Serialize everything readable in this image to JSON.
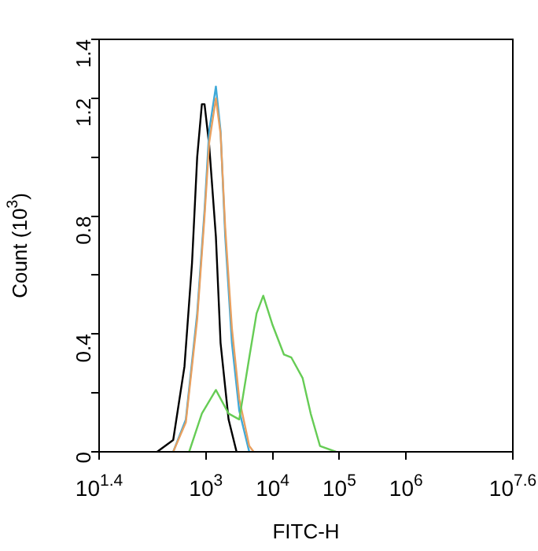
{
  "chart_data": {
    "type": "line",
    "xlabel": "FITC-H",
    "ylabel": "Count (10$^{3}$)",
    "log": "x",
    "grid": false,
    "legend": false,
    "marker": "none",
    "line_style": "solid",
    "xlim": [
      25.12,
      39810717
    ],
    "xticks": [
      {
        "value": 25.12,
        "label": "10$^{1.4}$"
      },
      {
        "value": 1000,
        "label": "10$^{3}$"
      },
      {
        "value": 10000,
        "label": "10$^{4}$"
      },
      {
        "value": 100000,
        "label": "10$^{5}$"
      },
      {
        "value": 1000000,
        "label": "10$^{6}$"
      },
      {
        "value": 39810717,
        "label": "10$^{7.6}$"
      }
    ],
    "ylim": [
      0,
      1.4
    ],
    "yticks": [
      0,
      {
        "value": 0.2,
        "label": null
      },
      0.4,
      {
        "value": 0.6,
        "label": null
      },
      0.8,
      {
        "value": 1.0,
        "label": null
      },
      1.2,
      1.4
    ],
    "series": [
      {
        "color": "#66cc55",
        "x": [
          562,
          871,
          1413,
          2188,
          3162,
          4467,
          5754,
          7244,
          10000,
          14800,
          19100,
          28200,
          37200,
          51300,
          89100
        ],
        "values": [
          0,
          0.13,
          0.21,
          0.13,
          0.11,
          0.32,
          0.47,
          0.53,
          0.43,
          0.33,
          0.32,
          0.25,
          0.13,
          0.02,
          0
        ]
      },
      {
        "color": "#e8a060",
        "x": [
          324,
          501,
          741,
          955,
          1122,
          1413,
          1660,
          1950,
          2455,
          3162,
          4467,
          5200
        ],
        "values": [
          0,
          0.1,
          0.45,
          0.8,
          1.05,
          1.2,
          1.08,
          0.76,
          0.42,
          0.18,
          0.02,
          0
        ]
      },
      {
        "color": "#3fa9d8",
        "x": [
          324,
          501,
          741,
          955,
          1122,
          1413,
          1660,
          1950,
          2455,
          3162,
          4467
        ],
        "values": [
          0,
          0.11,
          0.47,
          0.82,
          1.09,
          1.24,
          1.09,
          0.73,
          0.37,
          0.14,
          0
        ]
      },
      {
        "color": "#000000",
        "x": [
          186,
          324,
          478,
          620,
          741,
          871,
          955,
          1122,
          1413,
          1660,
          2188,
          2884
        ],
        "values": [
          0,
          0.04,
          0.29,
          0.64,
          1.0,
          1.18,
          1.18,
          1.04,
          0.73,
          0.37,
          0.11,
          0
        ]
      }
    ]
  }
}
